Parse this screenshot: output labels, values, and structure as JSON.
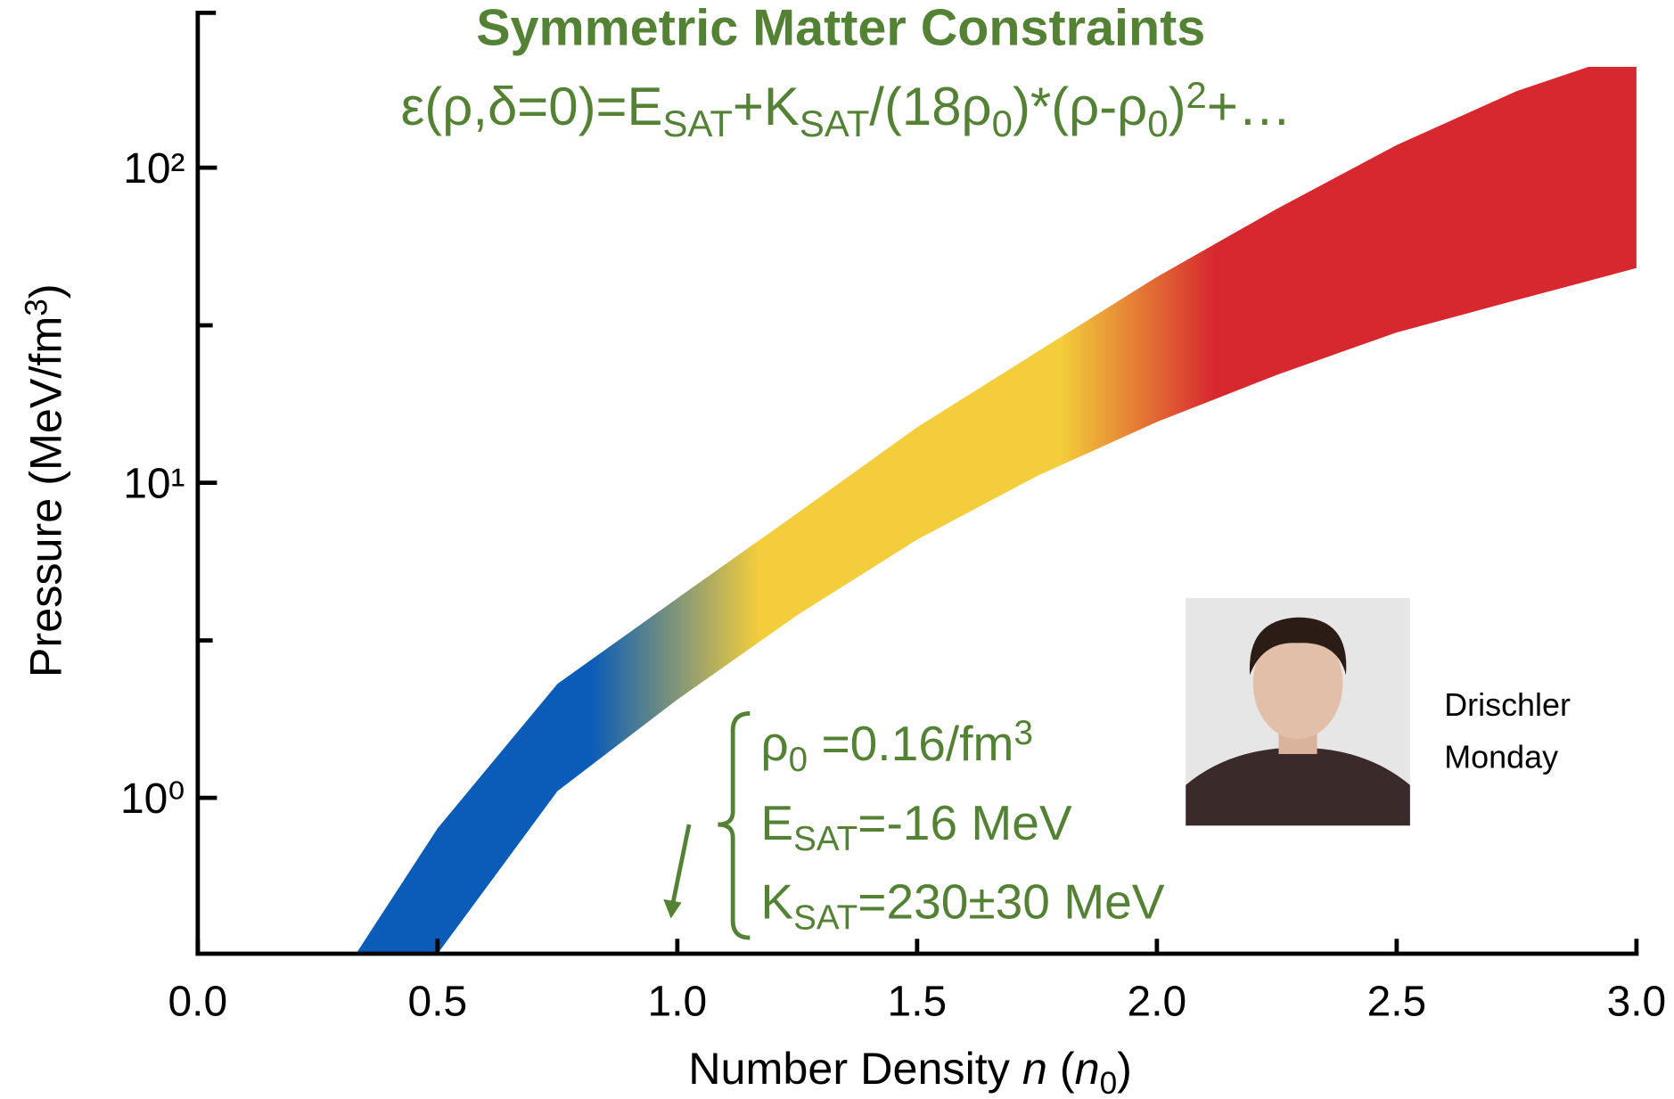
{
  "chart_data": {
    "type": "band",
    "title": "Symmetric Matter Constraints",
    "subtitle": [
      {
        "text": "ε(ρ,δ=0)=E"
      },
      {
        "text": "SAT",
        "style": "sub"
      },
      {
        "text": "+K"
      },
      {
        "text": "SAT",
        "style": "sub"
      },
      {
        "text": "/(18ρ"
      },
      {
        "text": "0",
        "style": "sub"
      },
      {
        "text": ")*(ρ-ρ"
      },
      {
        "text": "0",
        "style": "sub"
      },
      {
        "text": ")"
      },
      {
        "text": "2",
        "style": "sup"
      },
      {
        "text": "+…"
      }
    ],
    "xlabel": [
      {
        "text": "Number Density "
      },
      {
        "text": "n",
        "style": "italic"
      },
      {
        "text": " ("
      },
      {
        "text": "n",
        "style": "italic"
      },
      {
        "text": "0",
        "style": "sub"
      },
      {
        "text": ")"
      }
    ],
    "ylabel": [
      {
        "text": "Pressure (MeV/fm"
      },
      {
        "text": "3",
        "style": "sup"
      },
      {
        "text": ")"
      }
    ],
    "xlim": [
      0,
      3
    ],
    "xticks": [
      {
        "value": 0,
        "label": "0.0"
      },
      {
        "value": 0.5,
        "label": "0.5"
      },
      {
        "value": 1,
        "label": "1.0"
      },
      {
        "value": 1.5,
        "label": "1.5"
      },
      {
        "value": 2,
        "label": "2.0"
      },
      {
        "value": 2.5,
        "label": "2.5"
      },
      {
        "value": 3,
        "label": "3.0"
      }
    ],
    "ylim": [
      0.32,
      315
    ],
    "yscale": "log",
    "yticks": [
      {
        "value": 1,
        "label": "10⁰"
      },
      {
        "value": 10,
        "label": "10¹"
      },
      {
        "value": 100,
        "label": "10²"
      }
    ],
    "minor_yticks": [
      3.16,
      31.6
    ],
    "band": {
      "upper": {
        "x": [
          0.33,
          0.5,
          0.75,
          1.0,
          1.25,
          1.5,
          1.75,
          2.0,
          2.25,
          2.5,
          2.75,
          2.9,
          3.0
        ],
        "y": [
          0.32,
          0.8,
          2.3,
          4.3,
          8,
          15,
          26,
          45,
          74,
          118,
          175,
          209,
          209
        ]
      },
      "lower": {
        "x": [
          0.5,
          0.75,
          1.0,
          1.25,
          1.5,
          1.75,
          2.0,
          2.25,
          2.5,
          2.75,
          3.0
        ],
        "y": [
          0.32,
          1.05,
          2.05,
          3.8,
          6.6,
          10.5,
          15.6,
          22,
          30,
          38,
          48
        ]
      }
    },
    "gradient": [
      {
        "x": 0.82,
        "color": "#0a5cb8"
      },
      {
        "x": 1.17,
        "color": "#f3cd3b"
      },
      {
        "x": 1.8,
        "color": "#f3cd3b"
      },
      {
        "x": 2.12,
        "color": "#d7282f"
      }
    ],
    "annotations": [
      [
        {
          "text": "ρ"
        },
        {
          "text": "0",
          "style": "sub"
        },
        {
          "text": " =0.16/fm"
        },
        {
          "text": "3",
          "style": "sup"
        }
      ],
      [
        {
          "text": "E"
        },
        {
          "text": "SAT",
          "style": "sub"
        },
        {
          "text": "=-16 MeV"
        }
      ],
      [
        {
          "text": "K"
        },
        {
          "text": "SAT",
          "style": "sub"
        },
        {
          "text": "=230±30 MeV"
        }
      ]
    ],
    "photo_caption": [
      "Drischler",
      "Monday"
    ]
  }
}
